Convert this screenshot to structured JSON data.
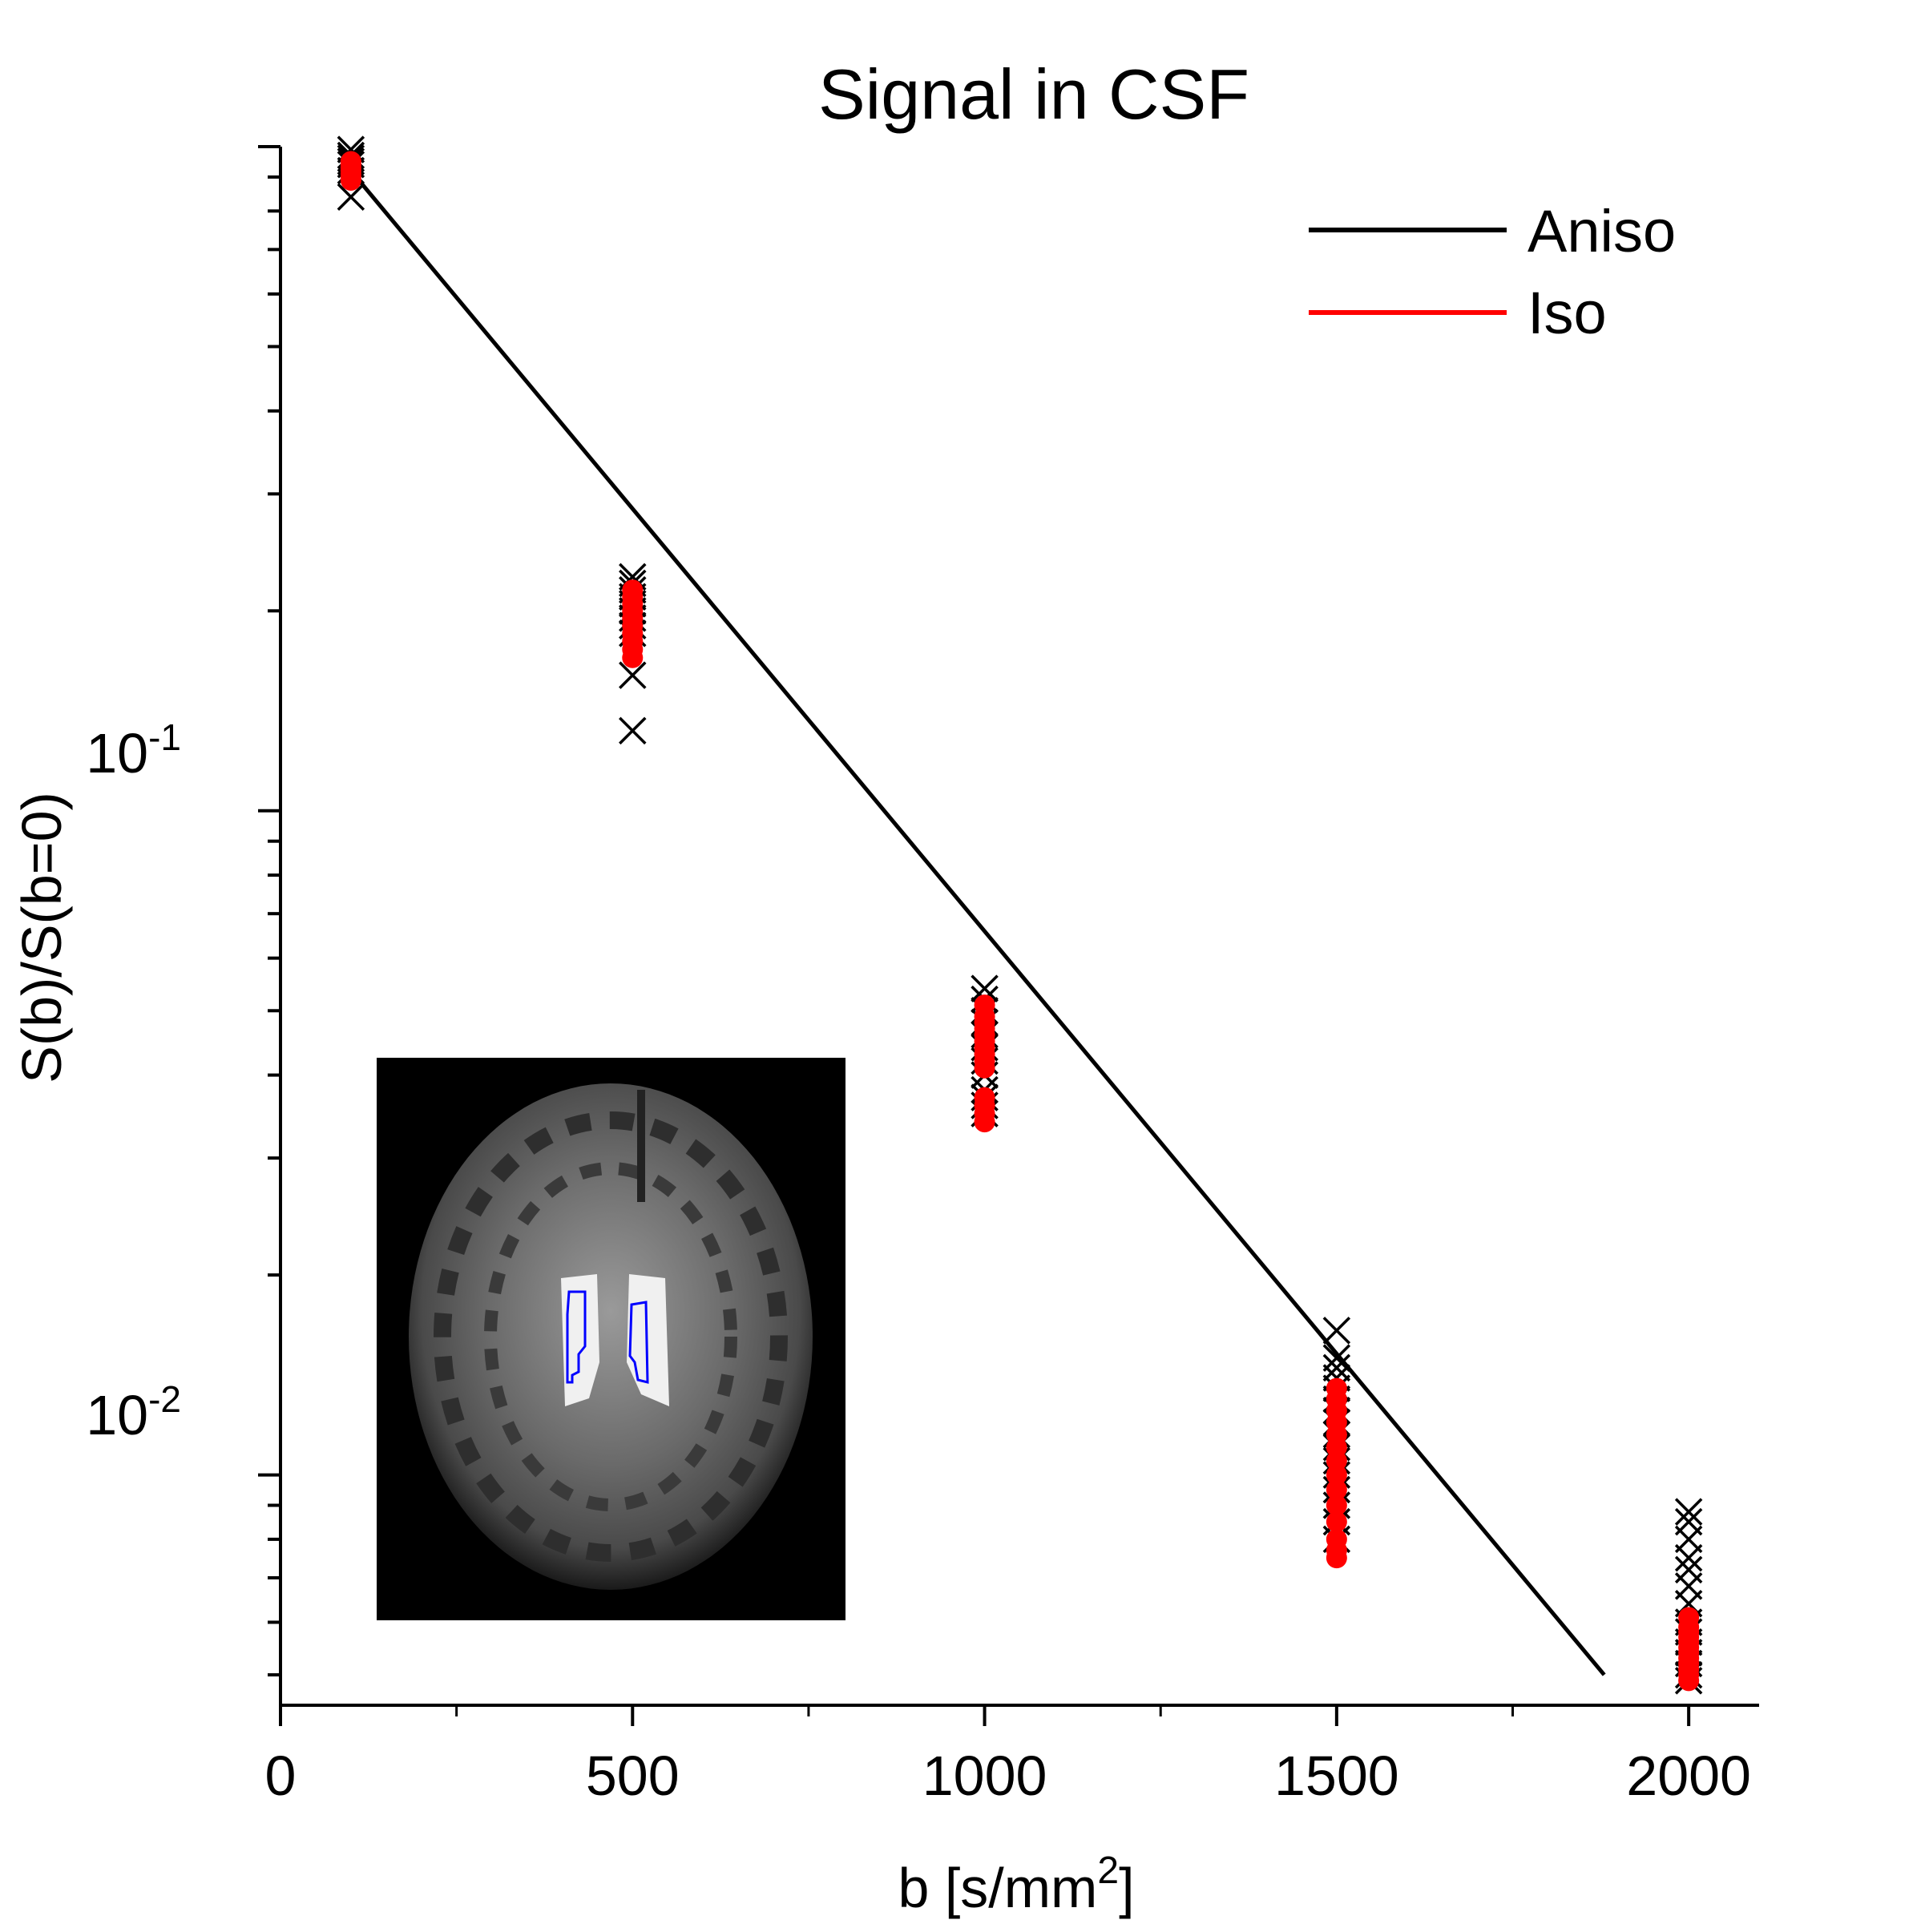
{
  "chart_data": {
    "type": "scatter",
    "title": "Signal in CSF",
    "xlabel": {
      "base": "b [s/mm",
      "sup": "2",
      "close": "]"
    },
    "ylabel": "S(b)/S(b=0)",
    "xlim": [
      0,
      2100
    ],
    "ylim": [
      0.0045,
      1.0
    ],
    "yscale": "log",
    "xticks": [
      0,
      500,
      1000,
      1500,
      2000
    ],
    "xtick_labels": [
      "0",
      "500",
      "1000",
      "1500",
      "2000"
    ],
    "yticks": [
      {
        "value": 0.1,
        "base": "10",
        "exp": "-1"
      },
      {
        "value": 0.01,
        "base": "10",
        "exp": "-2"
      }
    ],
    "legend": {
      "placement": "top-right",
      "entries": [
        {
          "label": "Aniso",
          "color": "#000000"
        },
        {
          "label": "Iso",
          "color": "#ff0000"
        }
      ]
    },
    "fit_line": {
      "name": "Aniso",
      "color": "#000000",
      "x": [
        100,
        1880
      ],
      "y": [
        0.92,
        0.005
      ]
    },
    "series": [
      {
        "name": "Aniso",
        "marker": "x",
        "color": "#000000",
        "points": [
          {
            "x": 100,
            "y": [
              0.99,
              0.97,
              0.96,
              0.95,
              0.94,
              0.92,
              0.84
            ]
          },
          {
            "x": 500,
            "y": [
              0.225,
              0.22,
              0.215,
              0.21,
              0.205,
              0.2,
              0.195,
              0.19,
              0.185,
              0.16,
              0.132
            ]
          },
          {
            "x": 1000,
            "y": [
              0.054,
              0.052,
              0.05,
              0.048,
              0.046,
              0.044,
              0.042,
              0.04,
              0.038,
              0.037,
              0.036,
              0.035
            ]
          },
          {
            "x": 1500,
            "y": [
              0.0165,
              0.015,
              0.0145,
              0.014,
              0.0135,
              0.013,
              0.0125,
              0.012,
              0.0115,
              0.011,
              0.0105,
              0.01,
              0.0095,
              0.009,
              0.0085,
              0.008
            ]
          },
          {
            "x": 2000,
            "y": [
              0.0088,
              0.0085,
              0.008,
              0.0075,
              0.0072,
              0.0068,
              0.0064,
              0.006,
              0.0058,
              0.0056,
              0.0054,
              0.0052,
              0.005,
              0.0049
            ]
          }
        ]
      },
      {
        "name": "Iso",
        "marker": "o",
        "color": "#ff0000",
        "points": [
          {
            "x": 100,
            "y": [
              0.95,
              0.94,
              0.93,
              0.92,
              0.91,
              0.9,
              0.89
            ]
          },
          {
            "x": 500,
            "y": [
              0.215,
              0.21,
              0.205,
              0.2,
              0.195,
              0.19,
              0.185,
              0.18,
              0.175,
              0.17
            ]
          },
          {
            "x": 1000,
            "y": [
              0.051,
              0.049,
              0.048,
              0.047,
              0.046,
              0.045,
              0.044,
              0.043,
              0.042,
              0.041,
              0.037,
              0.036,
              0.035,
              0.034
            ]
          },
          {
            "x": 1500,
            "y": [
              0.0135,
              0.013,
              0.0125,
              0.012,
              0.0115,
              0.011,
              0.0105,
              0.01,
              0.0095,
              0.009,
              0.0085,
              0.008,
              0.0077,
              0.0075
            ]
          },
          {
            "x": 2000,
            "y": [
              0.0061,
              0.0059,
              0.0058,
              0.0057,
              0.0056,
              0.0055,
              0.0054,
              0.0053,
              0.0052,
              0.0051,
              0.005,
              0.0049
            ]
          }
        ]
      }
    ],
    "inset": {
      "description_icon": "brain-mri-icon",
      "roi_color": "#0000ff"
    }
  }
}
